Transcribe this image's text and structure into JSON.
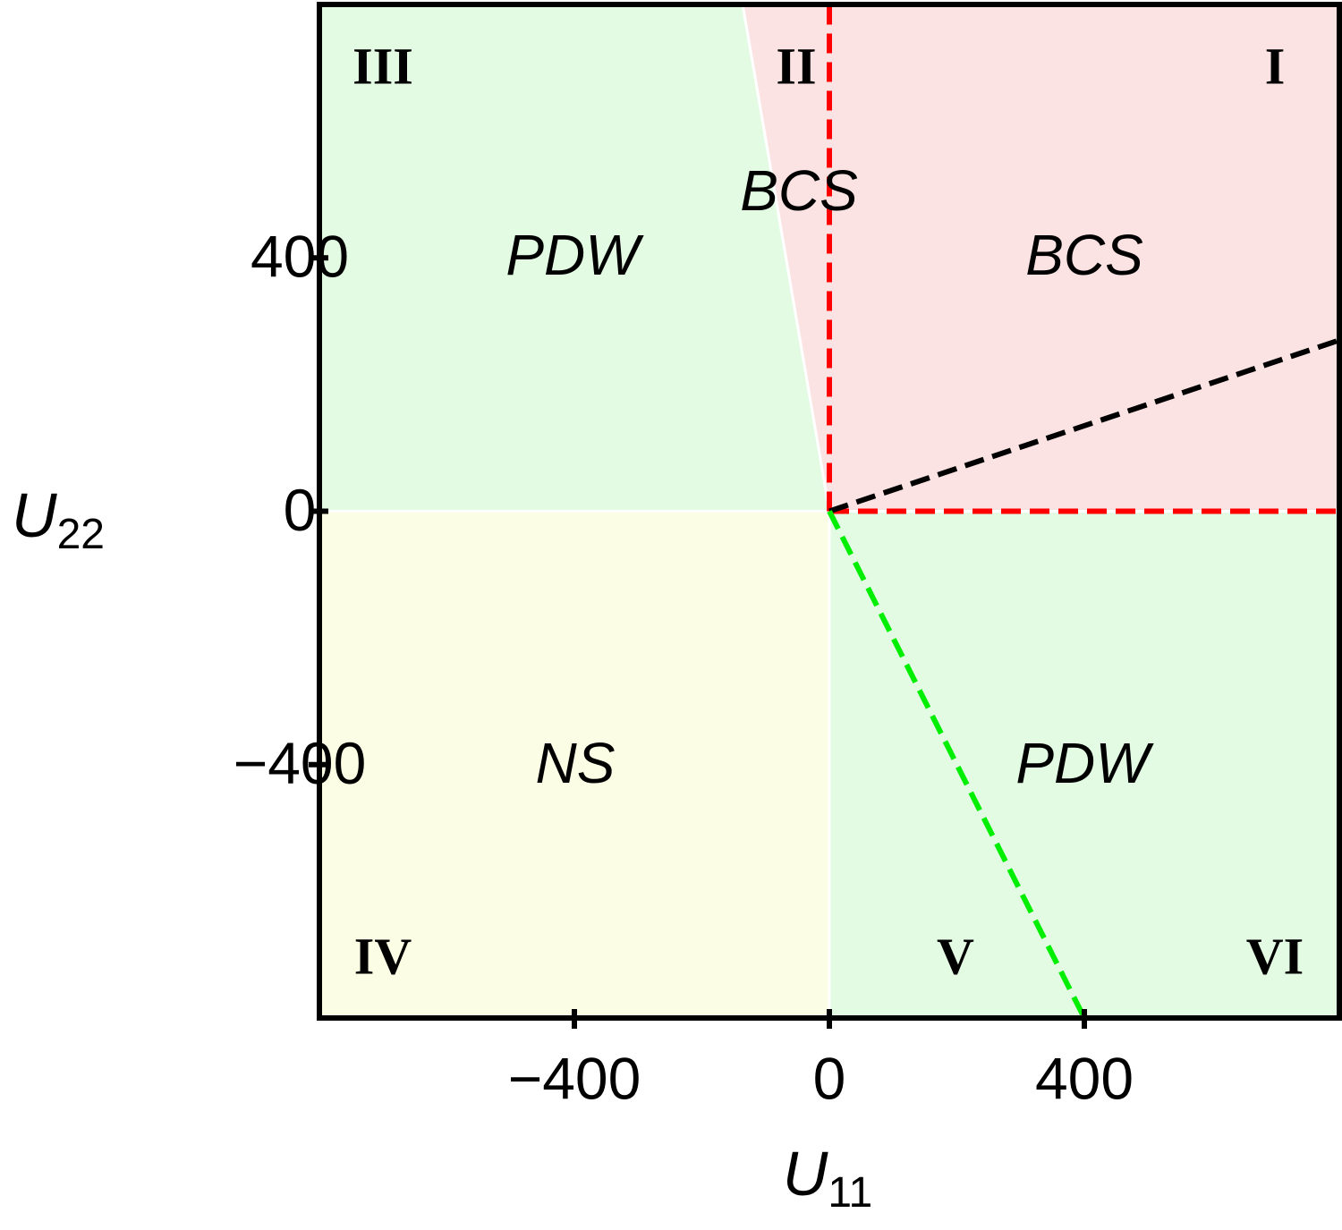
{
  "chart_data": {
    "type": "phase-diagram",
    "xlabel": {
      "main": "U",
      "sub": "11"
    },
    "ylabel": {
      "main": "U",
      "sub": "22"
    },
    "xlim": [
      -800,
      800
    ],
    "ylim": [
      -800,
      800
    ],
    "xticks": [
      {
        "value": -400,
        "label": "−400"
      },
      0,
      400
    ],
    "yticks": [
      {
        "value": -400,
        "label": "−400"
      },
      0,
      400
    ],
    "regions": [
      {
        "color": "#e3fbe3",
        "x": [
          -800,
          -800,
          -136,
          0
        ],
        "y": [
          0,
          800,
          800,
          0
        ]
      },
      {
        "color": "#fce3e3",
        "x": [
          -136,
          800,
          800,
          0
        ],
        "y": [
          800,
          800,
          0,
          0
        ]
      },
      {
        "color": "#fcfde5",
        "x": [
          -800,
          -800,
          0,
          0
        ],
        "y": [
          -800,
          0,
          0,
          -800
        ]
      },
      {
        "color": "#e3fbe3",
        "x": [
          0,
          800,
          800,
          0
        ],
        "y": [
          0,
          0,
          -800,
          -800
        ]
      }
    ],
    "lines": [
      {
        "color": "#ff0000",
        "x": [
          0,
          0
        ],
        "y": [
          0,
          800
        ]
      },
      {
        "color": "#ff0000",
        "x": [
          0,
          800
        ],
        "y": [
          0,
          0
        ]
      },
      {
        "color": "#000000",
        "x": [
          0,
          800
        ],
        "y": [
          0,
          270
        ]
      },
      {
        "color": "#00ee00",
        "x": [
          0,
          400
        ],
        "y": [
          0,
          -800
        ]
      }
    ],
    "region_labels": [
      "I",
      "II",
      "III",
      "IV",
      "V",
      "VI"
    ],
    "phase_labels": [
      "PDW",
      "BCS",
      "BCS",
      "NS",
      "PDW"
    ]
  }
}
